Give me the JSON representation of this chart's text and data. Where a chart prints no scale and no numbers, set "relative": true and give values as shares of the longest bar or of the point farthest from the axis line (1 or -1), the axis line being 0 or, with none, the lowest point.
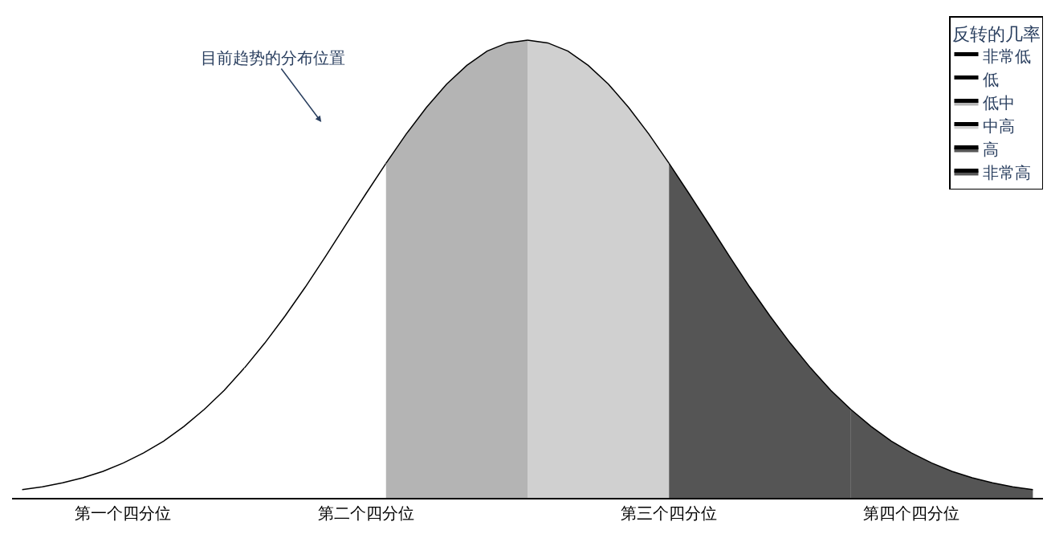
{
  "chart_data": {
    "type": "area",
    "relative": true,
    "categories": [
      null,
      null,
      null,
      null,
      null,
      "第一个四分位",
      null,
      null,
      null,
      null,
      null,
      null,
      null,
      null,
      null,
      null,
      null,
      "第二个四分位",
      null,
      null,
      null,
      null,
      null,
      null,
      null,
      null,
      null,
      null,
      null,
      null,
      null,
      null,
      "第三个四分位",
      null,
      null,
      null,
      null,
      null,
      null,
      null,
      null,
      null,
      null,
      null,
      "第四个四分位",
      null,
      null,
      null,
      null,
      null,
      null
    ],
    "legend_title": "反转的几率",
    "legend": "top right",
    "marker": "none",
    "line_style": "solid",
    "series": [
      {
        "name": "非常低",
        "color": "#ffffff",
        "values": [
          0.018,
          0.024,
          0.033,
          0.044,
          0.058,
          0.076,
          0.098,
          0.124,
          0.156,
          0.193,
          0.235,
          0.284,
          null,
          null,
          null,
          null,
          null,
          null,
          null,
          null,
          null,
          null,
          null,
          null,
          null,
          null,
          null,
          null,
          null,
          null,
          null,
          null,
          null,
          null,
          null,
          null,
          null,
          null,
          null,
          null,
          null,
          null,
          null,
          null,
          null,
          null,
          null,
          null,
          null,
          null,
          null
        ]
      },
      {
        "name": "低",
        "color": "#ffffff",
        "values": [
          null,
          null,
          null,
          null,
          null,
          null,
          null,
          null,
          null,
          null,
          null,
          0.284,
          0.338,
          0.397,
          0.46,
          0.527,
          0.596,
          0.664,
          0.731,
          null,
          null,
          null,
          null,
          null,
          null,
          null,
          null,
          null,
          null,
          null,
          null,
          null,
          null,
          null,
          null,
          null,
          null,
          null,
          null,
          null,
          null,
          null,
          null,
          null,
          null,
          null,
          null,
          null,
          null,
          null,
          null
        ]
      },
      {
        "name": "低中",
        "color": "#b4b4b4",
        "values": [
          null,
          null,
          null,
          null,
          null,
          null,
          null,
          null,
          null,
          null,
          null,
          null,
          null,
          null,
          null,
          null,
          null,
          null,
          0.731,
          0.795,
          0.853,
          0.904,
          0.945,
          0.976,
          0.994,
          1,
          null,
          null,
          null,
          null,
          null,
          null,
          null,
          null,
          null,
          null,
          null,
          null,
          null,
          null,
          null,
          null,
          null,
          null,
          null,
          null,
          null,
          null,
          null,
          null,
          null
        ]
      },
      {
        "name": "中高",
        "color": "#d0d0d0",
        "values": [
          null,
          null,
          null,
          null,
          null,
          null,
          null,
          null,
          null,
          null,
          null,
          null,
          null,
          null,
          null,
          null,
          null,
          null,
          null,
          null,
          null,
          null,
          null,
          null,
          null,
          1,
          0.994,
          0.976,
          0.945,
          0.904,
          0.853,
          0.795,
          0.731,
          null,
          null,
          null,
          null,
          null,
          null,
          null,
          null,
          null,
          null,
          null,
          null,
          null,
          null,
          null,
          null,
          null,
          null
        ]
      },
      {
        "name": "高",
        "color": "#555555",
        "values": [
          null,
          null,
          null,
          null,
          null,
          null,
          null,
          null,
          null,
          null,
          null,
          null,
          null,
          null,
          null,
          null,
          null,
          null,
          null,
          null,
          null,
          null,
          null,
          null,
          null,
          null,
          null,
          null,
          null,
          null,
          null,
          null,
          0.731,
          0.664,
          0.596,
          0.527,
          0.46,
          0.397,
          0.338,
          0.284,
          0.235,
          0.193,
          null,
          null,
          null,
          null,
          null,
          null,
          null,
          null,
          null
        ]
      },
      {
        "name": "非常高",
        "color": "#555555",
        "values": [
          null,
          null,
          null,
          null,
          null,
          null,
          null,
          null,
          null,
          null,
          null,
          null,
          null,
          null,
          null,
          null,
          null,
          null,
          null,
          null,
          null,
          null,
          null,
          null,
          null,
          null,
          null,
          null,
          null,
          null,
          null,
          null,
          null,
          null,
          null,
          null,
          null,
          null,
          null,
          null,
          null,
          0.193,
          0.156,
          0.124,
          0.098,
          0.076,
          0.058,
          0.044,
          0.033,
          0.024,
          0.018
        ]
      }
    ],
    "annotations": [
      "目前趋势的分布位置"
    ]
  }
}
